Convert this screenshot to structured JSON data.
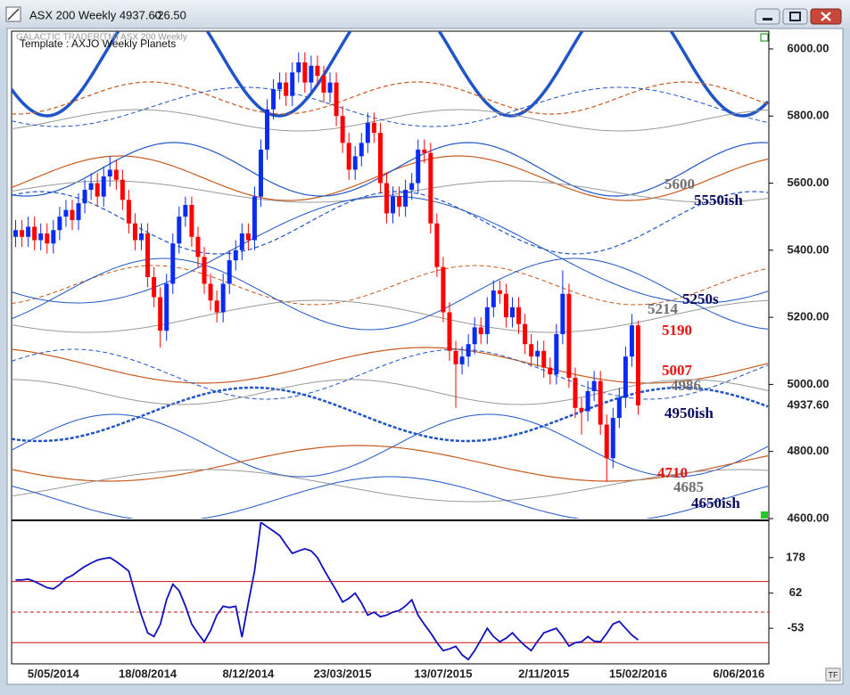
{
  "window": {
    "title": "ASX 200 Weekly 4937.60",
    "change": "-26.50",
    "caption": "GALACTIC TRADER(TM)   ASX 200 Weekly",
    "template": "Template : AXJO Weekly Planets",
    "corner_button": "TF"
  },
  "chart_data": [
    {
      "type": "candlestick",
      "categories": [
        null,
        null,
        null,
        null,
        null,
        null,
        "5/05/2014",
        null,
        null,
        null,
        null,
        null,
        null,
        null,
        null,
        null,
        null,
        null,
        null,
        null,
        null,
        "18/08/2014",
        null,
        null,
        null,
        null,
        null,
        null,
        null,
        null,
        null,
        null,
        null,
        null,
        null,
        null,
        null,
        "8/12/2014",
        null,
        null,
        null,
        null,
        null,
        null,
        null,
        null,
        null,
        null,
        null,
        null,
        null,
        null,
        "23/03/2015",
        null,
        null,
        null,
        null,
        null,
        null,
        null,
        null,
        null,
        null,
        null,
        null,
        null,
        null,
        null,
        "13/07/2015",
        null,
        null,
        null,
        null,
        null,
        null,
        null,
        null,
        null,
        null,
        null,
        null,
        null,
        null,
        null,
        "2/11/2015",
        null,
        null,
        null,
        null,
        null,
        null,
        null,
        null,
        null,
        null,
        null,
        null,
        null,
        null,
        "15/02/2016",
        null,
        null,
        null,
        null,
        null,
        null,
        null,
        null,
        null,
        null,
        null,
        null,
        null,
        null,
        null,
        "6/06/2016",
        null,
        null,
        null,
        null
      ],
      "open": [
        5440,
        5460,
        5440,
        5470,
        5430,
        5450,
        5420,
        5460,
        5500,
        5520,
        5490,
        5540,
        5580,
        5600,
        5560,
        5620,
        5640,
        5610,
        5550,
        5480,
        5430,
        5450,
        5320,
        5260,
        5160,
        5300,
        5420,
        5500,
        5535,
        5440,
        5380,
        5300,
        5250,
        5215,
        5300,
        5370,
        5400,
        5450,
        5430,
        5560,
        5700,
        5820,
        5880,
        5900,
        5860,
        5930,
        5960,
        5900,
        5950,
        5920,
        5870,
        5900,
        5800,
        5720,
        5640,
        5680,
        5720,
        5780,
        5750,
        5600,
        5510,
        5560,
        5530,
        5580,
        5600,
        5700,
        5690,
        5480,
        5350,
        5215,
        5100,
        5060,
        5083,
        5120,
        5170,
        5150,
        5230,
        5280,
        5270,
        5200,
        5230,
        5180,
        5120,
        5083,
        5100,
        5050,
        5030,
        5150,
        5270,
        5020,
        4930,
        4920,
        4980,
        5010,
        4880,
        4780,
        4900,
        4960,
        5083,
        5176,
        null,
        null,
        null,
        null,
        null,
        null,
        null,
        null,
        null,
        null,
        null,
        null,
        null,
        null,
        null,
        null,
        null,
        null,
        null,
        null
      ],
      "high": [
        5490,
        5490,
        5500,
        5500,
        5480,
        5480,
        5490,
        5530,
        5550,
        5550,
        5570,
        5610,
        5630,
        5630,
        5650,
        5680,
        5670,
        5640,
        5580,
        5510,
        5480,
        5480,
        5350,
        5290,
        5330,
        5450,
        5530,
        5560,
        5560,
        5470,
        5410,
        5330,
        5280,
        5330,
        5400,
        5430,
        5480,
        5480,
        5590,
        5730,
        5850,
        5910,
        5930,
        5930,
        5960,
        5990,
        5990,
        5980,
        5980,
        5950,
        5930,
        5930,
        5830,
        5750,
        5710,
        5750,
        5810,
        5810,
        5780,
        5630,
        5590,
        5590,
        5610,
        5630,
        5730,
        5730,
        5720,
        5510,
        5380,
        5245,
        5130,
        5113,
        5150,
        5200,
        5200,
        5260,
        5310,
        5310,
        5300,
        5260,
        5260,
        5210,
        5150,
        5130,
        5130,
        5080,
        5180,
        5340,
        5300,
        5050,
        4960,
        5010,
        5040,
        5040,
        4910,
        4930,
        4990,
        5113,
        5210,
        5190,
        null,
        null,
        null,
        null,
        null,
        null,
        null,
        null,
        null,
        null,
        null,
        null,
        null,
        null,
        null,
        null,
        null,
        null,
        null,
        null
      ],
      "low": [
        5410,
        5410,
        5410,
        5400,
        5400,
        5390,
        5390,
        5430,
        5470,
        5460,
        5460,
        5510,
        5550,
        5530,
        5530,
        5590,
        5580,
        5520,
        5450,
        5400,
        5400,
        5290,
        5230,
        5110,
        5130,
        5270,
        5390,
        5470,
        5410,
        5350,
        5270,
        5220,
        5185,
        5185,
        5270,
        5340,
        5370,
        5400,
        5400,
        5530,
        5670,
        5790,
        5850,
        5830,
        5830,
        5900,
        5870,
        5870,
        5890,
        5840,
        5840,
        5770,
        5690,
        5610,
        5610,
        5650,
        5690,
        5720,
        5570,
        5480,
        5480,
        5500,
        5500,
        5550,
        5570,
        5660,
        5450,
        5320,
        5185,
        5070,
        4930,
        5030,
        5053,
        5090,
        5120,
        5120,
        5200,
        5240,
        5170,
        5170,
        5150,
        5090,
        5053,
        5053,
        5020,
        5000,
        5000,
        5120,
        4990,
        4900,
        4850,
        4890,
        4950,
        4850,
        4710,
        4750,
        4870,
        4930,
        5053,
        4910,
        null,
        null,
        null,
        null,
        null,
        null,
        null,
        null,
        null,
        null,
        null,
        null,
        null,
        null,
        null,
        null,
        null,
        null,
        null,
        null
      ],
      "close": [
        5460,
        5440,
        5470,
        5430,
        5450,
        5420,
        5460,
        5500,
        5520,
        5490,
        5540,
        5580,
        5600,
        5560,
        5620,
        5640,
        5610,
        5550,
        5480,
        5430,
        5450,
        5320,
        5260,
        5160,
        5300,
        5420,
        5500,
        5535,
        5440,
        5380,
        5300,
        5250,
        5215,
        5300,
        5370,
        5400,
        5450,
        5430,
        5560,
        5700,
        5820,
        5880,
        5900,
        5860,
        5930,
        5960,
        5900,
        5950,
        5920,
        5870,
        5900,
        5800,
        5720,
        5640,
        5680,
        5720,
        5780,
        5750,
        5600,
        5510,
        5560,
        5530,
        5580,
        5600,
        5700,
        5690,
        5480,
        5350,
        5215,
        5100,
        5060,
        5083,
        5120,
        5170,
        5150,
        5230,
        5280,
        5270,
        5200,
        5230,
        5180,
        5120,
        5083,
        5100,
        5050,
        5030,
        5150,
        5270,
        5020,
        4930,
        4920,
        4980,
        5010,
        4880,
        4780,
        4900,
        4960,
        5083,
        5176,
        4937.6,
        null,
        null,
        null,
        null,
        null,
        null,
        null,
        null,
        null,
        null,
        null,
        null,
        null,
        null,
        null,
        null,
        null,
        null,
        null,
        null
      ],
      "up_color": "#0a2cf0",
      "down_color": "#ff0000",
      "ylim": [
        4600,
        6053
      ],
      "yticks": [
        {
          "value": 4600,
          "label": "4600.00"
        },
        {
          "value": 4800,
          "label": "4800.00"
        },
        {
          "value": 5000,
          "label": "5000.00"
        },
        {
          "value": 5200,
          "label": "5200.00"
        },
        {
          "value": 5400,
          "label": "5400.00"
        },
        {
          "value": 5600,
          "label": "5600.00"
        },
        {
          "value": 5800,
          "label": "5800.00"
        },
        {
          "value": 6000,
          "label": "6000.00"
        }
      ],
      "last_price_label": "4937.60",
      "annotations": [
        {
          "text": "5600",
          "color": "#707070"
        },
        {
          "text": "5550ish",
          "color": "#0b0b5e"
        },
        {
          "text": "5250s",
          "color": "#0b0b5e"
        },
        {
          "text": "5214",
          "color": "#707070"
        },
        {
          "text": "5190",
          "color": "#ee1111"
        },
        {
          "text": "5007",
          "color": "#ee1111"
        },
        {
          "text": "4986",
          "color": "#707070"
        },
        {
          "text": "4950ish",
          "color": "#0b0b5e"
        },
        {
          "text": "4710",
          "color": "#ee1111"
        },
        {
          "text": "4685",
          "color": "#707070"
        },
        {
          "text": "4650ish",
          "color": "#0b0b5e"
        }
      ]
    },
    {
      "type": "line",
      "color": "#1010c0",
      "values": [
        105,
        105,
        108,
        100,
        90,
        80,
        76,
        90,
        110,
        120,
        135,
        149,
        160,
        170,
        175,
        178,
        165,
        150,
        134,
        60,
        -10,
        -68,
        -80,
        -40,
        40,
        91,
        70,
        20,
        -39,
        -70,
        -97,
        -60,
        -10,
        19,
        15,
        19,
        -82,
        30,
        134,
        293,
        279,
        265,
        250,
        220,
        192,
        200,
        207,
        200,
        178,
        140,
        105,
        70,
        33,
        45,
        62,
        30,
        -10,
        0,
        -15,
        -10,
        0,
        5,
        20,
        40,
        -10,
        -40,
        -68,
        -100,
        -126,
        -120,
        -112,
        -140,
        -155,
        -126,
        -90,
        -53,
        -80,
        -97,
        -85,
        -68,
        -90,
        -110,
        -126,
        -95,
        -68,
        -60,
        -53,
        -80,
        -111,
        -100,
        -97,
        -80,
        -95,
        -97,
        -70,
        -39,
        -30,
        -53,
        -75,
        -91,
        null,
        null,
        null,
        null,
        null,
        null,
        null,
        null,
        null,
        null,
        null,
        null,
        null,
        null,
        null,
        null,
        null,
        null,
        null,
        null
      ],
      "ylim": [
        -169,
        294
      ],
      "yticks": [
        -53,
        62,
        178
      ],
      "levels": [
        100,
        0,
        -100
      ],
      "level_color": "#cc1111"
    }
  ]
}
